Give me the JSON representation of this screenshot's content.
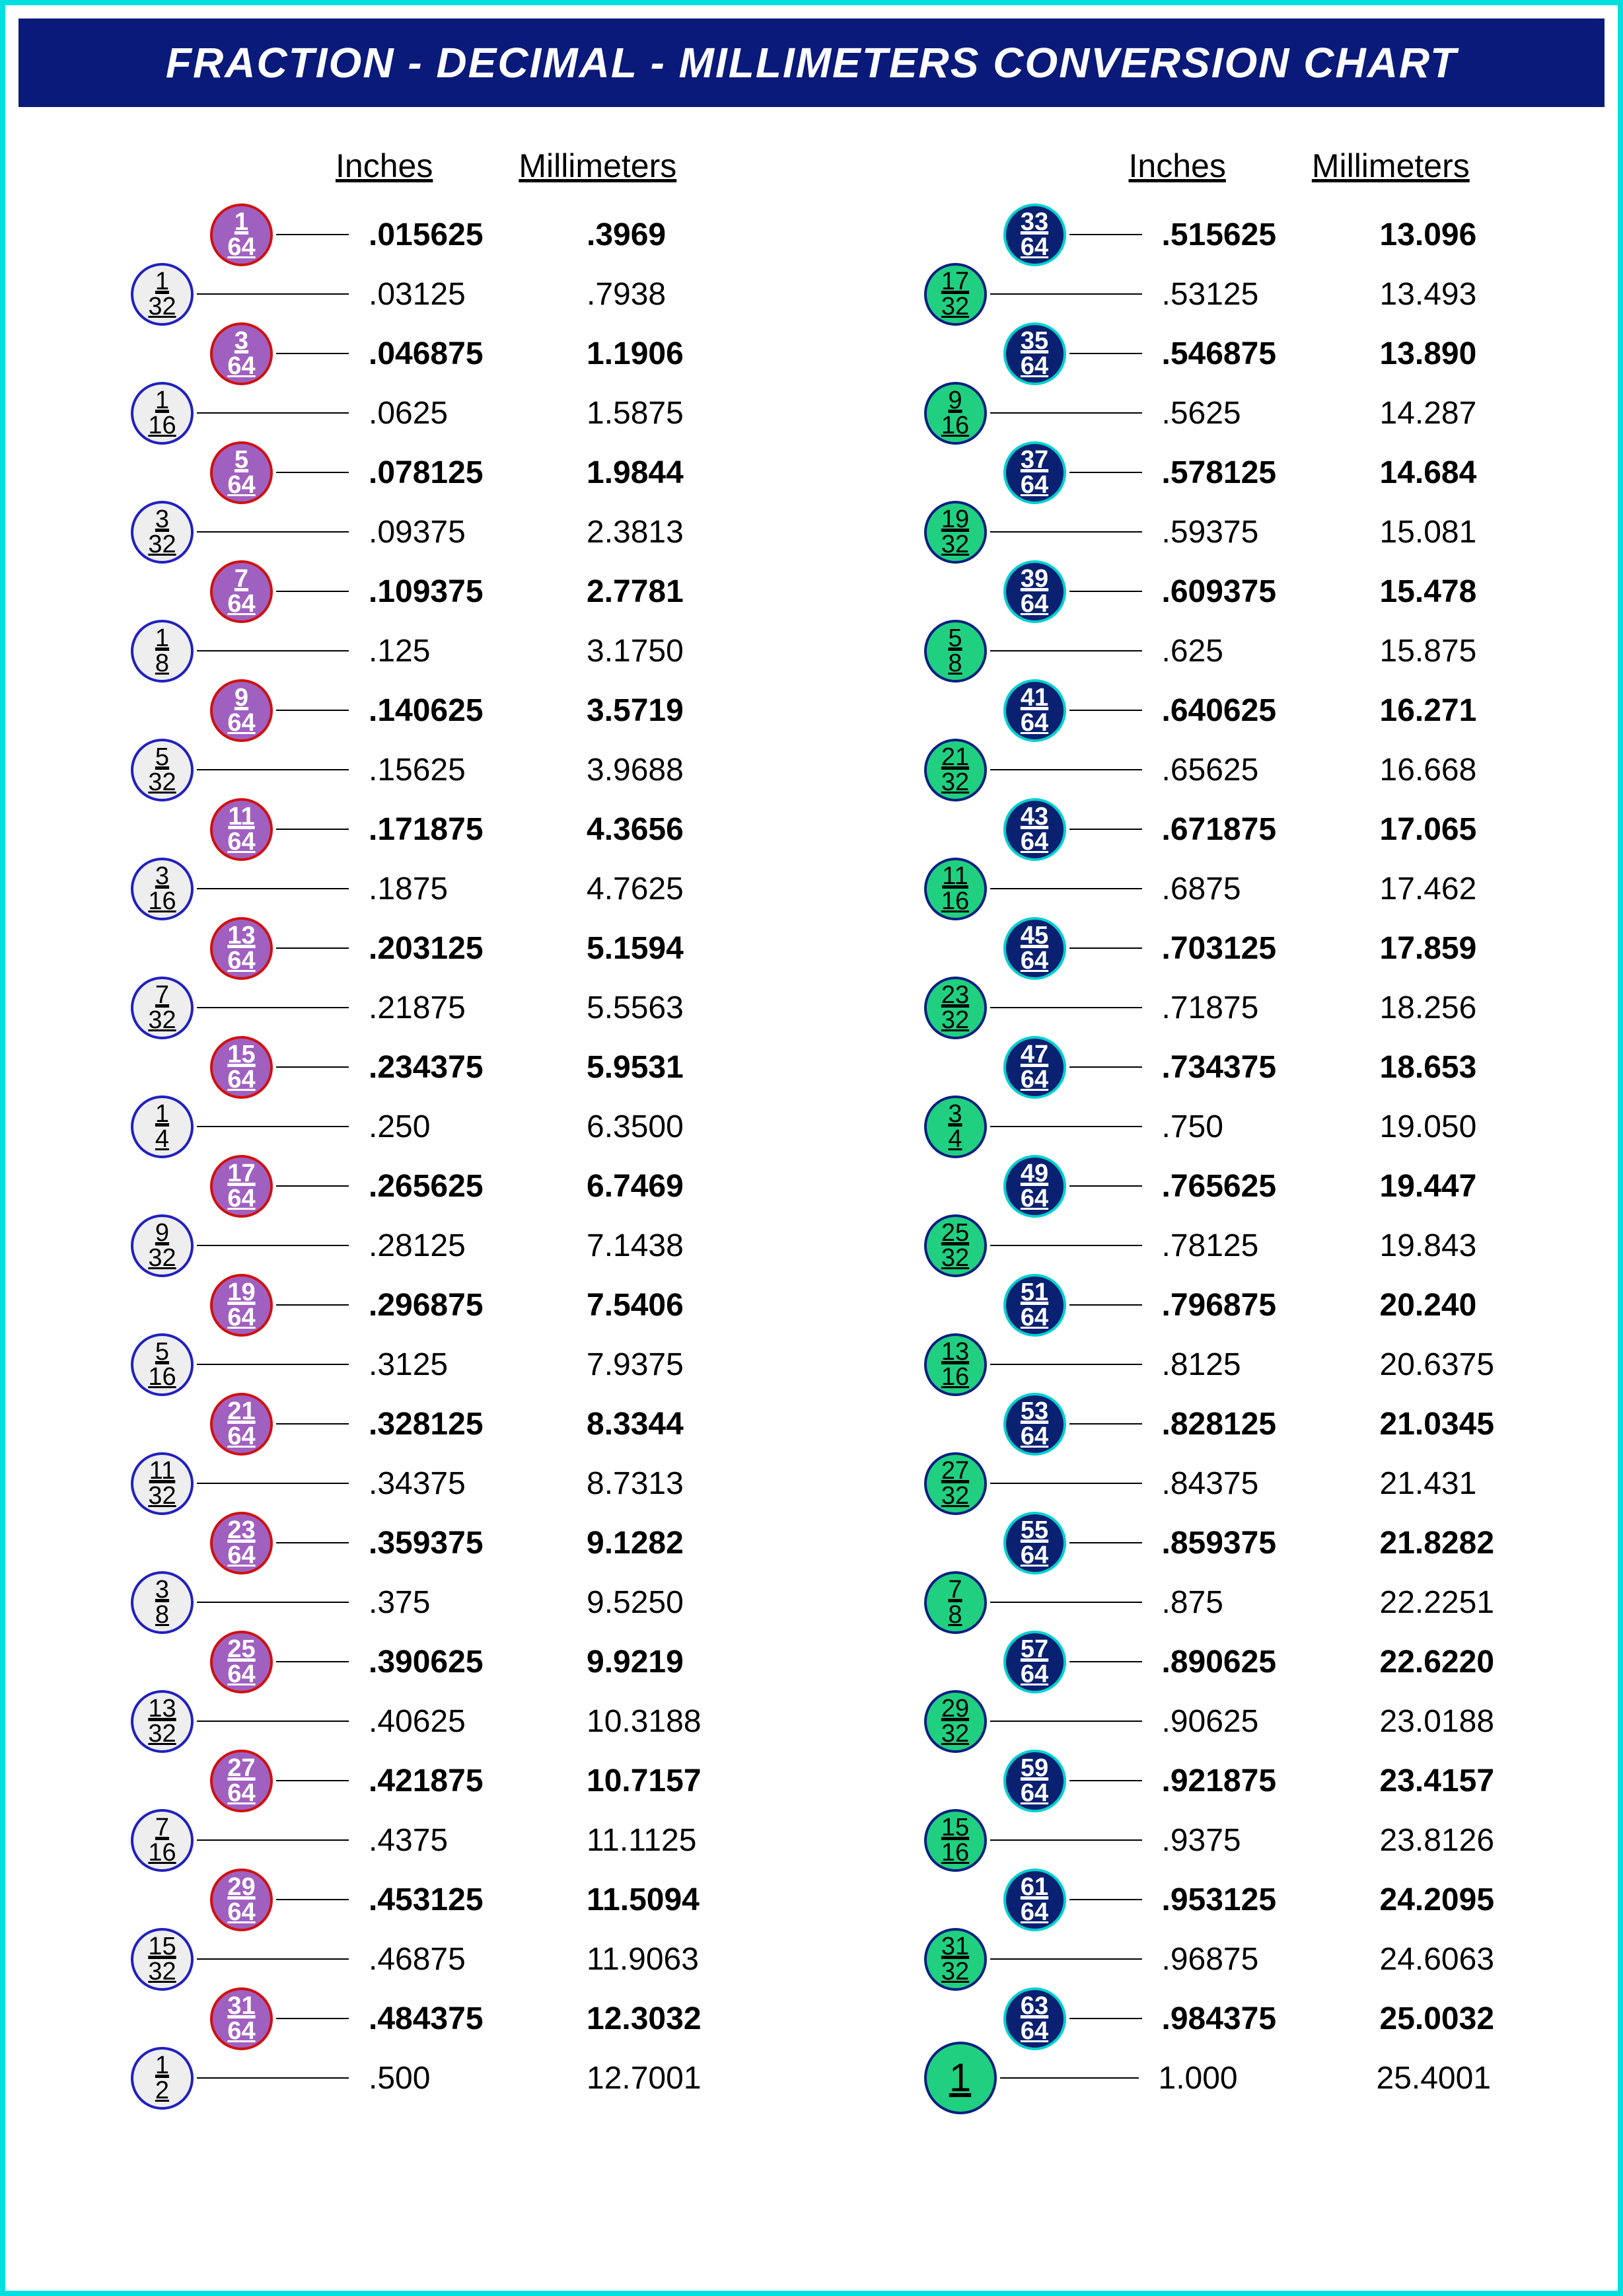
{
  "title": "FRACTION - DECIMAL - MILLIMETERS CONVERSION CHART",
  "headers": {
    "inches": "Inches",
    "mm": "Millimeters"
  },
  "colors": {
    "border_cyan": "#00e0e0",
    "title_bg": "#0a1a7a",
    "outer_a_fill": "#eeeeee",
    "outer_a_border": "#2020c0",
    "inner_a_fill": "#a060c0",
    "inner_a_border": "#d01010",
    "outer_b_fill": "#20d080",
    "outer_b_border": "#0a2080",
    "inner_b_fill": "#0a2070",
    "inner_b_border": "#00d0d0"
  },
  "left": [
    {
      "t": "i",
      "n": "1",
      "d": "64",
      "dec": ".015625",
      "mm": ".3969"
    },
    {
      "t": "o",
      "n": "1",
      "d": "32",
      "dec": ".03125",
      "mm": ".7938"
    },
    {
      "t": "i",
      "n": "3",
      "d": "64",
      "dec": ".046875",
      "mm": "1.1906"
    },
    {
      "t": "o",
      "n": "1",
      "d": "16",
      "dec": ".0625",
      "mm": "1.5875"
    },
    {
      "t": "i",
      "n": "5",
      "d": "64",
      "dec": ".078125",
      "mm": "1.9844"
    },
    {
      "t": "o",
      "n": "3",
      "d": "32",
      "dec": ".09375",
      "mm": "2.3813"
    },
    {
      "t": "i",
      "n": "7",
      "d": "64",
      "dec": ".109375",
      "mm": "2.7781"
    },
    {
      "t": "o",
      "n": "1",
      "d": "8",
      "dec": ".125",
      "mm": "3.1750"
    },
    {
      "t": "i",
      "n": "9",
      "d": "64",
      "dec": ".140625",
      "mm": "3.5719"
    },
    {
      "t": "o",
      "n": "5",
      "d": "32",
      "dec": ".15625",
      "mm": "3.9688"
    },
    {
      "t": "i",
      "n": "11",
      "d": "64",
      "dec": ".171875",
      "mm": "4.3656"
    },
    {
      "t": "o",
      "n": "3",
      "d": "16",
      "dec": ".1875",
      "mm": "4.7625"
    },
    {
      "t": "i",
      "n": "13",
      "d": "64",
      "dec": ".203125",
      "mm": "5.1594"
    },
    {
      "t": "o",
      "n": "7",
      "d": "32",
      "dec": ".21875",
      "mm": "5.5563"
    },
    {
      "t": "i",
      "n": "15",
      "d": "64",
      "dec": ".234375",
      "mm": "5.9531"
    },
    {
      "t": "o",
      "n": "1",
      "d": "4",
      "dec": ".250",
      "mm": "6.3500"
    },
    {
      "t": "i",
      "n": "17",
      "d": "64",
      "dec": ".265625",
      "mm": "6.7469"
    },
    {
      "t": "o",
      "n": "9",
      "d": "32",
      "dec": ".28125",
      "mm": "7.1438"
    },
    {
      "t": "i",
      "n": "19",
      "d": "64",
      "dec": ".296875",
      "mm": "7.5406"
    },
    {
      "t": "o",
      "n": "5",
      "d": "16",
      "dec": ".3125",
      "mm": "7.9375"
    },
    {
      "t": "i",
      "n": "21",
      "d": "64",
      "dec": ".328125",
      "mm": "8.3344"
    },
    {
      "t": "o",
      "n": "11",
      "d": "32",
      "dec": ".34375",
      "mm": "8.7313"
    },
    {
      "t": "i",
      "n": "23",
      "d": "64",
      "dec": ".359375",
      "mm": "9.1282"
    },
    {
      "t": "o",
      "n": "3",
      "d": "8",
      "dec": ".375",
      "mm": "9.5250"
    },
    {
      "t": "i",
      "n": "25",
      "d": "64",
      "dec": ".390625",
      "mm": "9.9219"
    },
    {
      "t": "o",
      "n": "13",
      "d": "32",
      "dec": ".40625",
      "mm": "10.3188"
    },
    {
      "t": "i",
      "n": "27",
      "d": "64",
      "dec": ".421875",
      "mm": "10.7157"
    },
    {
      "t": "o",
      "n": "7",
      "d": "16",
      "dec": ".4375",
      "mm": "11.1125"
    },
    {
      "t": "i",
      "n": "29",
      "d": "64",
      "dec": ".453125",
      "mm": "11.5094"
    },
    {
      "t": "o",
      "n": "15",
      "d": "32",
      "dec": ".46875",
      "mm": "11.9063"
    },
    {
      "t": "i",
      "n": "31",
      "d": "64",
      "dec": ".484375",
      "mm": "12.3032"
    },
    {
      "t": "o",
      "n": "1",
      "d": "2",
      "dec": ".500",
      "mm": "12.7001"
    }
  ],
  "right": [
    {
      "t": "i",
      "n": "33",
      "d": "64",
      "dec": ".515625",
      "mm": "13.096"
    },
    {
      "t": "o",
      "n": "17",
      "d": "32",
      "dec": ".53125",
      "mm": "13.493"
    },
    {
      "t": "i",
      "n": "35",
      "d": "64",
      "dec": ".546875",
      "mm": "13.890"
    },
    {
      "t": "o",
      "n": "9",
      "d": "16",
      "dec": ".5625",
      "mm": "14.287"
    },
    {
      "t": "i",
      "n": "37",
      "d": "64",
      "dec": ".578125",
      "mm": "14.684"
    },
    {
      "t": "o",
      "n": "19",
      "d": "32",
      "dec": ".59375",
      "mm": "15.081"
    },
    {
      "t": "i",
      "n": "39",
      "d": "64",
      "dec": ".609375",
      "mm": "15.478"
    },
    {
      "t": "o",
      "n": "5",
      "d": "8",
      "dec": ".625",
      "mm": "15.875"
    },
    {
      "t": "i",
      "n": "41",
      "d": "64",
      "dec": ".640625",
      "mm": "16.271"
    },
    {
      "t": "o",
      "n": "21",
      "d": "32",
      "dec": ".65625",
      "mm": "16.668"
    },
    {
      "t": "i",
      "n": "43",
      "d": "64",
      "dec": ".671875",
      "mm": "17.065"
    },
    {
      "t": "o",
      "n": "11",
      "d": "16",
      "dec": ".6875",
      "mm": "17.462"
    },
    {
      "t": "i",
      "n": "45",
      "d": "64",
      "dec": ".703125",
      "mm": "17.859"
    },
    {
      "t": "o",
      "n": "23",
      "d": "32",
      "dec": ".71875",
      "mm": "18.256"
    },
    {
      "t": "i",
      "n": "47",
      "d": "64",
      "dec": ".734375",
      "mm": "18.653"
    },
    {
      "t": "o",
      "n": "3",
      "d": "4",
      "dec": ".750",
      "mm": "19.050"
    },
    {
      "t": "i",
      "n": "49",
      "d": "64",
      "dec": ".765625",
      "mm": "19.447"
    },
    {
      "t": "o",
      "n": "25",
      "d": "32",
      "dec": ".78125",
      "mm": "19.843"
    },
    {
      "t": "i",
      "n": "51",
      "d": "64",
      "dec": ".796875",
      "mm": "20.240"
    },
    {
      "t": "o",
      "n": "13",
      "d": "16",
      "dec": ".8125",
      "mm": "20.6375"
    },
    {
      "t": "i",
      "n": "53",
      "d": "64",
      "dec": ".828125",
      "mm": "21.0345"
    },
    {
      "t": "o",
      "n": "27",
      "d": "32",
      "dec": ".84375",
      "mm": "21.431"
    },
    {
      "t": "i",
      "n": "55",
      "d": "64",
      "dec": ".859375",
      "mm": "21.8282"
    },
    {
      "t": "o",
      "n": "7",
      "d": "8",
      "dec": ".875",
      "mm": "22.2251"
    },
    {
      "t": "i",
      "n": "57",
      "d": "64",
      "dec": ".890625",
      "mm": "22.6220"
    },
    {
      "t": "o",
      "n": "29",
      "d": "32",
      "dec": ".90625",
      "mm": "23.0188"
    },
    {
      "t": "i",
      "n": "59",
      "d": "64",
      "dec": ".921875",
      "mm": "23.4157"
    },
    {
      "t": "o",
      "n": "15",
      "d": "16",
      "dec": ".9375",
      "mm": "23.8126"
    },
    {
      "t": "i",
      "n": "61",
      "d": "64",
      "dec": ".953125",
      "mm": "24.2095"
    },
    {
      "t": "o",
      "n": "31",
      "d": "32",
      "dec": ".96875",
      "mm": "24.6063"
    },
    {
      "t": "i",
      "n": "63",
      "d": "64",
      "dec": ".984375",
      "mm": "25.0032"
    },
    {
      "t": "one",
      "n": "1",
      "d": "",
      "dec": "1.000",
      "mm": "25.4001"
    }
  ]
}
